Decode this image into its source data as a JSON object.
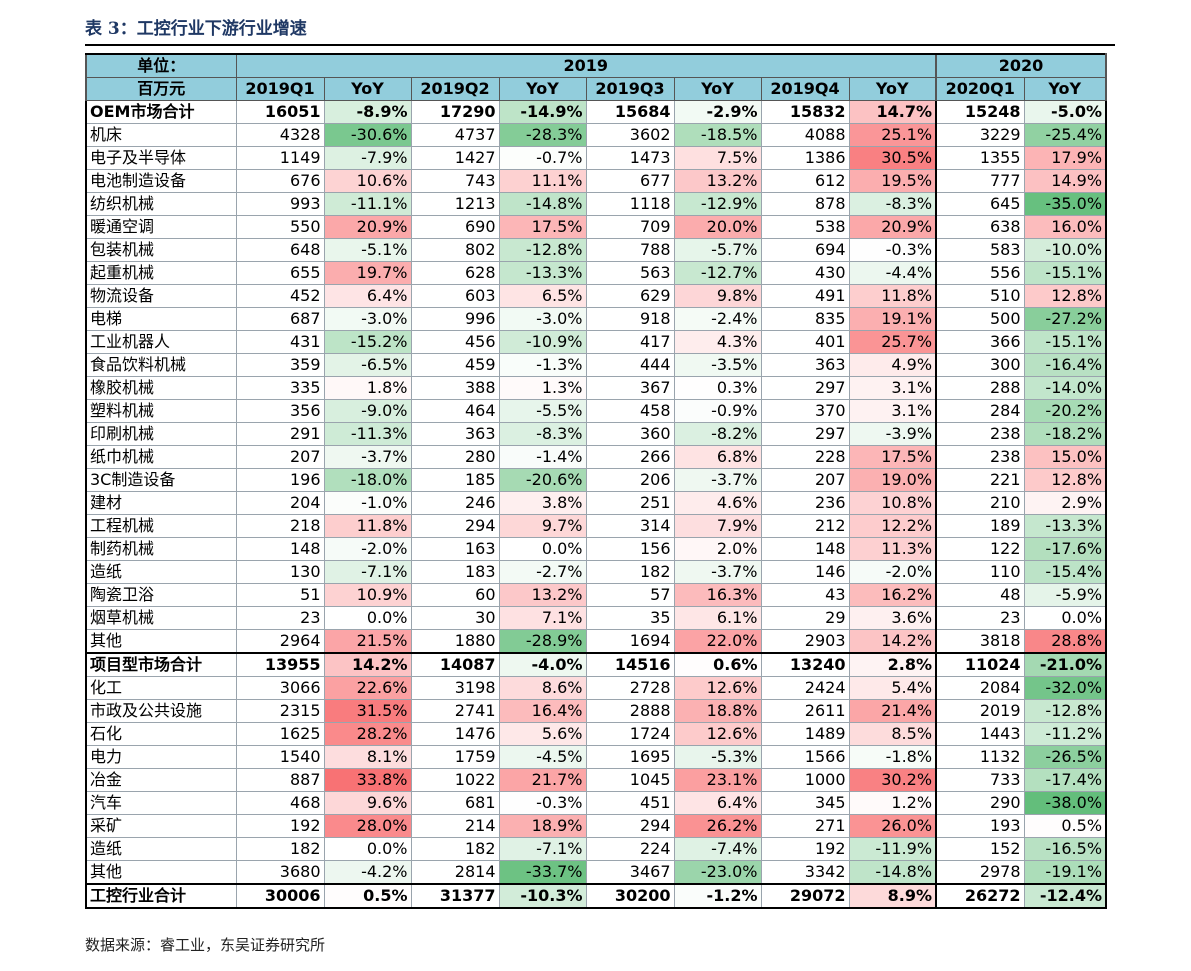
{
  "title": "表 3：工控行业下游行业增速",
  "header": {
    "unit_label": "单位：",
    "unit_value": "百万元",
    "year_2019": "2019",
    "year_2020": "2020",
    "columns": [
      "2019Q1",
      "YoY",
      "2019Q2",
      "YoY",
      "2019Q3",
      "YoY",
      "2019Q4",
      "YoY",
      "2020Q1",
      "YoY"
    ]
  },
  "rows": [
    {
      "name": "OEM市场合计",
      "bold": true,
      "cells": [
        "16051",
        "-8.9%",
        "17290",
        "-14.9%",
        "15684",
        "-2.9%",
        "15832",
        "14.7%",
        "15248",
        "-5.0%"
      ],
      "yoy": [
        -8.9,
        -14.9,
        -2.9,
        14.7,
        -5.0
      ]
    },
    {
      "name": "机床",
      "cells": [
        "4328",
        "-30.6%",
        "4737",
        "-28.3%",
        "3602",
        "-18.5%",
        "4088",
        "25.1%",
        "3229",
        "-25.4%"
      ],
      "yoy": [
        -30.6,
        -28.3,
        -18.5,
        25.1,
        -25.4
      ]
    },
    {
      "name": "电子及半导体",
      "cells": [
        "1149",
        "-7.9%",
        "1427",
        "-0.7%",
        "1473",
        "7.5%",
        "1386",
        "30.5%",
        "1355",
        "17.9%"
      ],
      "yoy": [
        -7.9,
        -0.7,
        7.5,
        30.5,
        17.9
      ]
    },
    {
      "name": "电池制造设备",
      "cells": [
        "676",
        "10.6%",
        "743",
        "11.1%",
        "677",
        "13.2%",
        "612",
        "19.5%",
        "777",
        "14.9%"
      ],
      "yoy": [
        10.6,
        11.1,
        13.2,
        19.5,
        14.9
      ]
    },
    {
      "name": "纺织机械",
      "cells": [
        "993",
        "-11.1%",
        "1213",
        "-14.8%",
        "1118",
        "-12.9%",
        "878",
        "-8.3%",
        "645",
        "-35.0%"
      ],
      "yoy": [
        -11.1,
        -14.8,
        -12.9,
        -8.3,
        -35.0
      ]
    },
    {
      "name": "暖通空调",
      "cells": [
        "550",
        "20.9%",
        "690",
        "17.5%",
        "709",
        "20.0%",
        "538",
        "20.9%",
        "638",
        "16.0%"
      ],
      "yoy": [
        20.9,
        17.5,
        20.0,
        20.9,
        16.0
      ]
    },
    {
      "name": "包装机械",
      "cells": [
        "648",
        "-5.1%",
        "802",
        "-12.8%",
        "788",
        "-5.7%",
        "694",
        "-0.3%",
        "583",
        "-10.0%"
      ],
      "yoy": [
        -5.1,
        -12.8,
        -5.7,
        -0.3,
        -10.0
      ]
    },
    {
      "name": "起重机械",
      "cells": [
        "655",
        "19.7%",
        "628",
        "-13.3%",
        "563",
        "-12.7%",
        "430",
        "-4.4%",
        "556",
        "-15.1%"
      ],
      "yoy": [
        19.7,
        -13.3,
        -12.7,
        -4.4,
        -15.1
      ]
    },
    {
      "name": "物流设备",
      "cells": [
        "452",
        "6.4%",
        "603",
        "6.5%",
        "629",
        "9.8%",
        "491",
        "11.8%",
        "510",
        "12.8%"
      ],
      "yoy": [
        6.4,
        6.5,
        9.8,
        11.8,
        12.8
      ]
    },
    {
      "name": "电梯",
      "cells": [
        "687",
        "-3.0%",
        "996",
        "-3.0%",
        "918",
        "-2.4%",
        "835",
        "19.1%",
        "500",
        "-27.2%"
      ],
      "yoy": [
        -3.0,
        -3.0,
        -2.4,
        19.1,
        -27.2
      ]
    },
    {
      "name": "工业机器人",
      "cells": [
        "431",
        "-15.2%",
        "456",
        "-10.9%",
        "417",
        "4.3%",
        "401",
        "25.7%",
        "366",
        "-15.1%"
      ],
      "yoy": [
        -15.2,
        -10.9,
        4.3,
        25.7,
        -15.1
      ]
    },
    {
      "name": "食品饮料机械",
      "cells": [
        "359",
        "-6.5%",
        "459",
        "-1.3%",
        "444",
        "-3.5%",
        "363",
        "4.9%",
        "300",
        "-16.4%"
      ],
      "yoy": [
        -6.5,
        -1.3,
        -3.5,
        4.9,
        -16.4
      ]
    },
    {
      "name": "橡胶机械",
      "cells": [
        "335",
        "1.8%",
        "388",
        "1.3%",
        "367",
        "0.3%",
        "297",
        "3.1%",
        "288",
        "-14.0%"
      ],
      "yoy": [
        1.8,
        1.3,
        0.3,
        3.1,
        -14.0
      ]
    },
    {
      "name": "塑料机械",
      "cells": [
        "356",
        "-9.0%",
        "464",
        "-5.5%",
        "458",
        "-0.9%",
        "370",
        "3.1%",
        "284",
        "-20.2%"
      ],
      "yoy": [
        -9.0,
        -5.5,
        -0.9,
        3.1,
        -20.2
      ]
    },
    {
      "name": "印刷机械",
      "cells": [
        "291",
        "-11.3%",
        "363",
        "-8.3%",
        "360",
        "-8.2%",
        "297",
        "-3.9%",
        "238",
        "-18.2%"
      ],
      "yoy": [
        -11.3,
        -8.3,
        -8.2,
        -3.9,
        -18.2
      ]
    },
    {
      "name": "纸巾机械",
      "cells": [
        "207",
        "-3.7%",
        "280",
        "-1.4%",
        "266",
        "6.8%",
        "228",
        "17.5%",
        "238",
        "15.0%"
      ],
      "yoy": [
        -3.7,
        -1.4,
        6.8,
        17.5,
        15.0
      ]
    },
    {
      "name": "3C制造设备",
      "cells": [
        "196",
        "-18.0%",
        "185",
        "-20.6%",
        "206",
        "-3.7%",
        "207",
        "19.0%",
        "221",
        "12.8%"
      ],
      "yoy": [
        -18.0,
        -20.6,
        -3.7,
        19.0,
        12.8
      ]
    },
    {
      "name": "建材",
      "cells": [
        "204",
        "-1.0%",
        "246",
        "3.8%",
        "251",
        "4.6%",
        "236",
        "10.8%",
        "210",
        "2.9%"
      ],
      "yoy": [
        -1.0,
        3.8,
        4.6,
        10.8,
        2.9
      ]
    },
    {
      "name": "工程机械",
      "cells": [
        "218",
        "11.8%",
        "294",
        "9.7%",
        "314",
        "7.9%",
        "212",
        "12.2%",
        "189",
        "-13.3%"
      ],
      "yoy": [
        11.8,
        9.7,
        7.9,
        12.2,
        -13.3
      ]
    },
    {
      "name": "制药机械",
      "cells": [
        "148",
        "-2.0%",
        "163",
        "0.0%",
        "156",
        "2.0%",
        "148",
        "11.3%",
        "122",
        "-17.6%"
      ],
      "yoy": [
        -2.0,
        0.0,
        2.0,
        11.3,
        -17.6
      ]
    },
    {
      "name": "造纸",
      "cells": [
        "130",
        "-7.1%",
        "183",
        "-2.7%",
        "182",
        "-3.7%",
        "146",
        "-2.0%",
        "110",
        "-15.4%"
      ],
      "yoy": [
        -7.1,
        -2.7,
        -3.7,
        -2.0,
        -15.4
      ]
    },
    {
      "name": "陶瓷卫浴",
      "cells": [
        "51",
        "10.9%",
        "60",
        "13.2%",
        "57",
        "16.3%",
        "43",
        "16.2%",
        "48",
        "-5.9%"
      ],
      "yoy": [
        10.9,
        13.2,
        16.3,
        16.2,
        -5.9
      ]
    },
    {
      "name": "烟草机械",
      "cells": [
        "23",
        "0.0%",
        "30",
        "7.1%",
        "35",
        "6.1%",
        "29",
        "3.6%",
        "23",
        "0.0%"
      ],
      "yoy": [
        0.0,
        7.1,
        6.1,
        3.6,
        0.0
      ]
    },
    {
      "name": "其他",
      "cells": [
        "2964",
        "21.5%",
        "1880",
        "-28.9%",
        "1694",
        "22.0%",
        "2903",
        "14.2%",
        "3818",
        "28.8%"
      ],
      "yoy": [
        21.5,
        -28.9,
        22.0,
        14.2,
        28.8
      ]
    },
    {
      "name": "项目型市场合计",
      "bold": true,
      "topline": true,
      "cells": [
        "13955",
        "14.2%",
        "14087",
        "-4.0%",
        "14516",
        "0.6%",
        "13240",
        "2.8%",
        "11024",
        "-21.0%"
      ],
      "yoy": [
        14.2,
        -4.0,
        0.6,
        2.8,
        -21.0
      ]
    },
    {
      "name": "化工",
      "cells": [
        "3066",
        "22.6%",
        "3198",
        "8.6%",
        "2728",
        "12.6%",
        "2424",
        "5.4%",
        "2084",
        "-32.0%"
      ],
      "yoy": [
        22.6,
        8.6,
        12.6,
        5.4,
        -32.0
      ]
    },
    {
      "name": "市政及公共设施",
      "cells": [
        "2315",
        "31.5%",
        "2741",
        "16.4%",
        "2888",
        "18.8%",
        "2611",
        "21.4%",
        "2019",
        "-12.8%"
      ],
      "yoy": [
        31.5,
        16.4,
        18.8,
        21.4,
        -12.8
      ]
    },
    {
      "name": "石化",
      "cells": [
        "1625",
        "28.2%",
        "1476",
        "5.6%",
        "1724",
        "12.6%",
        "1489",
        "8.5%",
        "1443",
        "-11.2%"
      ],
      "yoy": [
        28.2,
        5.6,
        12.6,
        8.5,
        -11.2
      ]
    },
    {
      "name": "电力",
      "cells": [
        "1540",
        "8.1%",
        "1759",
        "-4.5%",
        "1695",
        "-5.3%",
        "1566",
        "-1.8%",
        "1132",
        "-26.5%"
      ],
      "yoy": [
        8.1,
        -4.5,
        -5.3,
        -1.8,
        -26.5
      ]
    },
    {
      "name": "冶金",
      "cells": [
        "887",
        "33.8%",
        "1022",
        "21.7%",
        "1045",
        "23.1%",
        "1000",
        "30.2%",
        "733",
        "-17.4%"
      ],
      "yoy": [
        33.8,
        21.7,
        23.1,
        30.2,
        -17.4
      ]
    },
    {
      "name": "汽车",
      "cells": [
        "468",
        "9.6%",
        "681",
        "-0.3%",
        "451",
        "6.4%",
        "345",
        "1.2%",
        "290",
        "-38.0%"
      ],
      "yoy": [
        9.6,
        -0.3,
        6.4,
        1.2,
        -38.0
      ]
    },
    {
      "name": "采矿",
      "cells": [
        "192",
        "28.0%",
        "214",
        "18.9%",
        "294",
        "26.2%",
        "271",
        "26.0%",
        "193",
        "0.5%"
      ],
      "yoy": [
        28.0,
        18.9,
        26.2,
        26.0,
        0.5
      ]
    },
    {
      "name": "造纸",
      "cells": [
        "182",
        "0.0%",
        "182",
        "-7.1%",
        "224",
        "-7.4%",
        "192",
        "-11.9%",
        "152",
        "-16.5%"
      ],
      "yoy": [
        0.0,
        -7.1,
        -7.4,
        -11.9,
        -16.5
      ]
    },
    {
      "name": "其他",
      "cells": [
        "3680",
        "-4.2%",
        "2814",
        "-33.7%",
        "3467",
        "-23.0%",
        "3342",
        "-14.8%",
        "2978",
        "-19.1%"
      ],
      "yoy": [
        -4.2,
        -33.7,
        -23.0,
        -14.8,
        -19.1
      ]
    },
    {
      "name": "工控行业合计",
      "bold": true,
      "topline": true,
      "bottomline": true,
      "cells": [
        "30006",
        "0.5%",
        "31377",
        "-10.3%",
        "30200",
        "-1.2%",
        "29072",
        "8.9%",
        "26272",
        "-12.4%"
      ],
      "yoy": [
        0.5,
        -10.3,
        -1.2,
        8.9,
        -12.4
      ]
    }
  ],
  "colors": {
    "header_bg": "#92cddc",
    "positive_max": "#f8696b",
    "negative_max": "#63be7b"
  },
  "source": "数据来源：睿工业，东吴证券研究所"
}
